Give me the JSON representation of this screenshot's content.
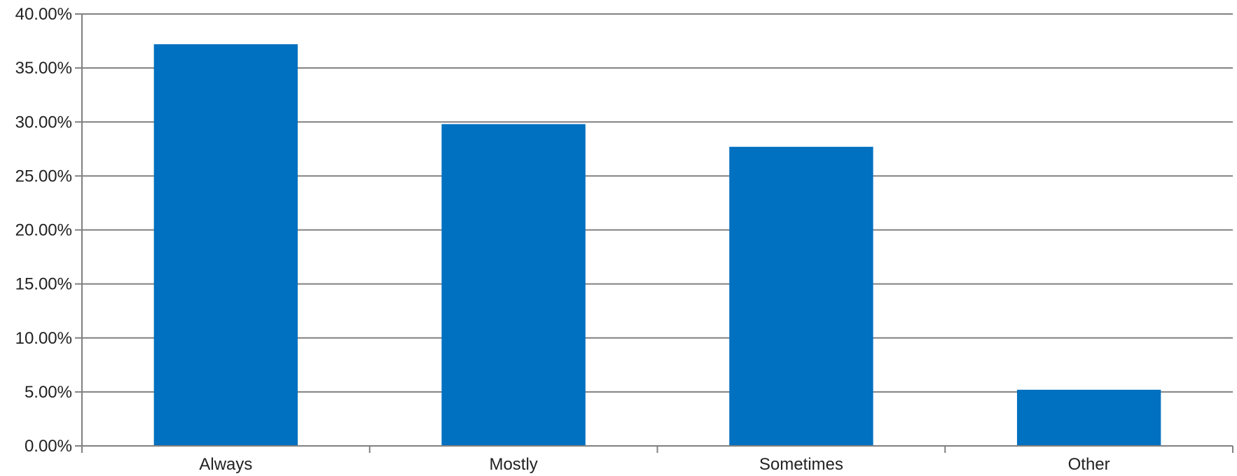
{
  "chart_data": {
    "type": "bar",
    "title": "",
    "xlabel": "",
    "ylabel": "",
    "categories": [
      "Always",
      "Mostly",
      "Sometimes",
      "Other"
    ],
    "values": [
      37.2,
      29.8,
      27.7,
      5.2
    ],
    "ylim": [
      0,
      40
    ],
    "y_ticks": [
      0,
      5,
      10,
      15,
      20,
      25,
      30,
      35,
      40
    ],
    "y_tick_labels": [
      "0.00%",
      "5.00%",
      "10.00%",
      "15.00%",
      "20.00%",
      "25.00%",
      "30.00%",
      "35.00%",
      "40.00%"
    ],
    "grid": true,
    "legend": "none",
    "bar_color": "#0070C0",
    "grid_color": "#808080",
    "axis_color": "#808080"
  }
}
